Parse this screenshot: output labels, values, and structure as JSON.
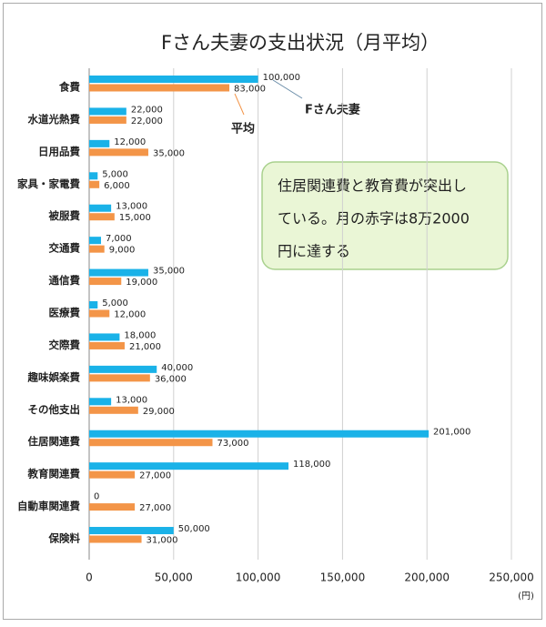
{
  "chart_data": {
    "type": "hbar",
    "title": "Fさん夫妻の支出状況（月平均）",
    "categories": [
      "食費",
      "水道光熱費",
      "日用品費",
      "家具・家電費",
      "被服費",
      "交通費",
      "通信費",
      "医療費",
      "交際費",
      "趣味娯楽費",
      "その他支出",
      "住居関連費",
      "教育関連費",
      "自動車関連費",
      "保険料"
    ],
    "series": [
      {
        "name": "Fさん夫妻",
        "color": "#1ab2e8",
        "values": [
          100000,
          22000,
          12000,
          5000,
          13000,
          7000,
          35000,
          5000,
          18000,
          40000,
          13000,
          201000,
          118000,
          0,
          50000
        ],
        "value_labels": [
          "100,000",
          "22,000",
          "12,000",
          "5,000",
          "13,000",
          "7,000",
          "35,000",
          "5,000",
          "18,000",
          "40,000",
          "13,000",
          "201,000",
          "118,000",
          "0",
          "50,000"
        ]
      },
      {
        "name": "平均",
        "color": "#f39548",
        "values": [
          83000,
          22000,
          35000,
          6000,
          15000,
          9000,
          19000,
          12000,
          21000,
          36000,
          29000,
          73000,
          27000,
          27000,
          31000
        ],
        "value_labels": [
          "83,000",
          "22,000",
          "35,000",
          "6,000",
          "15,000",
          "9,000",
          "19,000",
          "12,000",
          "21,000",
          "36,000",
          "29,000",
          "73,000",
          "27,000",
          "27,000",
          "31,000"
        ]
      }
    ],
    "xlim": [
      0,
      250000
    ],
    "xticks": [
      0,
      {
        "value": 50000,
        "label": "50,000"
      },
      {
        "value": 100000,
        "label": "100,000"
      },
      {
        "value": 150000,
        "label": "150,000"
      },
      {
        "value": 200000,
        "label": "200,000"
      },
      {
        "value": 250000,
        "label": "250,000"
      }
    ],
    "x_unit": "(円)",
    "grid": true,
    "callout": [
      "住居関連費と教育費が突出し",
      "ている。月の赤字は8万2000",
      "円に達する"
    ]
  }
}
